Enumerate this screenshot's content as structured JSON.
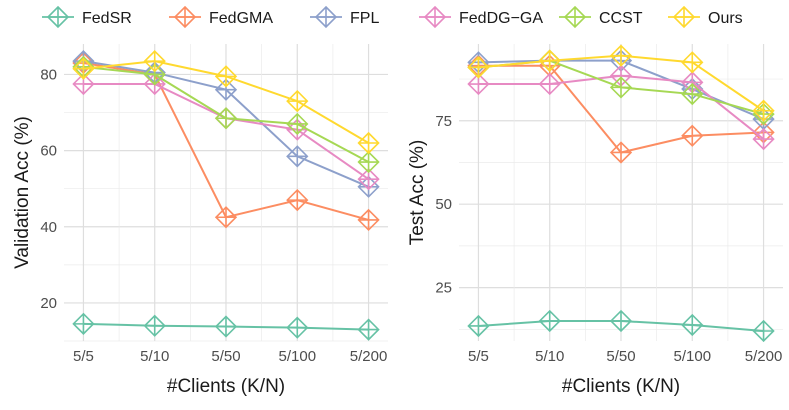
{
  "legend": [
    {
      "name": "FedSR",
      "color": "#66c2a5"
    },
    {
      "name": "FedGMA",
      "color": "#fc8d62"
    },
    {
      "name": "FPL",
      "color": "#8da0cb"
    },
    {
      "name": "FedDG−GA",
      "color": "#e78ac3"
    },
    {
      "name": "CCST",
      "color": "#a6d854"
    },
    {
      "name": "Ours",
      "color": "#ffd92f"
    }
  ],
  "chart_data": [
    {
      "type": "line",
      "title": "",
      "xlabel": "#Clients (K/N)",
      "ylabel": "Validation Acc (%)",
      "categories": [
        "5/5",
        "5/10",
        "5/50",
        "5/100",
        "5/200"
      ],
      "ylim": [
        10,
        88
      ],
      "yticks": [
        20,
        40,
        60,
        80
      ],
      "marker": "diamond-plus",
      "grid": true,
      "series": [
        {
          "name": "FedSR",
          "values": [
            14.5,
            14.0,
            13.8,
            13.5,
            13.0
          ]
        },
        {
          "name": "FedGMA",
          "values": [
            83.0,
            80.0,
            42.5,
            47.0,
            41.8
          ]
        },
        {
          "name": "FPL",
          "values": [
            83.5,
            80.5,
            76.0,
            58.5,
            50.5
          ]
        },
        {
          "name": "FedDG−GA",
          "values": [
            77.5,
            77.5,
            68.5,
            65.5,
            52.5
          ]
        },
        {
          "name": "CCST",
          "values": [
            82.0,
            80.0,
            68.5,
            67.0,
            57.0
          ]
        },
        {
          "name": "Ours",
          "values": [
            81.5,
            83.5,
            79.5,
            73.0,
            62.0
          ]
        }
      ]
    },
    {
      "type": "line",
      "title": "",
      "xlabel": "#Clients (K/N)",
      "ylabel": "Test Acc (%)",
      "categories": [
        "5/5",
        "5/10",
        "5/50",
        "5/100",
        "5/200"
      ],
      "ylim": [
        9,
        98
      ],
      "yticks": [
        25,
        50,
        75
      ],
      "marker": "diamond-plus",
      "grid": true,
      "series": [
        {
          "name": "FedSR",
          "values": [
            13.5,
            15.0,
            15.0,
            13.8,
            12.0
          ]
        },
        {
          "name": "FedGMA",
          "values": [
            91.5,
            91.5,
            65.5,
            70.5,
            71.5
          ]
        },
        {
          "name": "FPL",
          "values": [
            92.5,
            93.0,
            93.0,
            84.5,
            75.5
          ]
        },
        {
          "name": "FedDG−GA",
          "values": [
            86.0,
            86.0,
            88.5,
            86.5,
            69.5
          ]
        },
        {
          "name": "CCST",
          "values": [
            91.0,
            93.0,
            85.0,
            83.0,
            77.0
          ]
        },
        {
          "name": "Ours",
          "values": [
            91.0,
            93.0,
            94.5,
            92.5,
            78.0
          ]
        }
      ]
    }
  ]
}
